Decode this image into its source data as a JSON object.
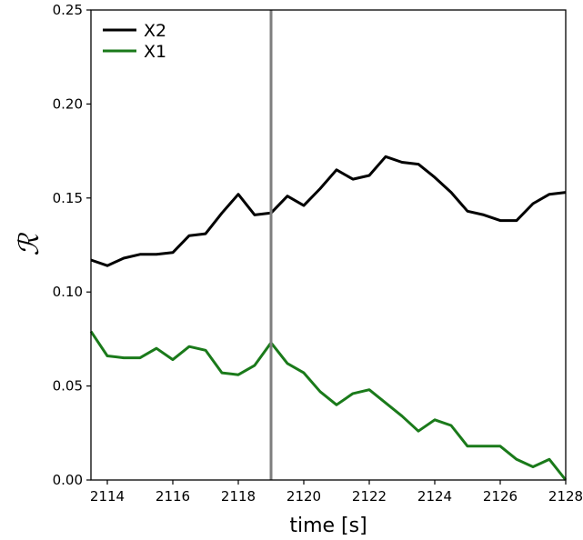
{
  "chart_data": {
    "type": "line",
    "title": "",
    "xlabel": "time [s]",
    "ylabel": "ℛ",
    "xlim": [
      2113.5,
      2128
    ],
    "ylim": [
      0,
      0.25
    ],
    "xticks": [
      2114,
      2116,
      2118,
      2120,
      2122,
      2124,
      2126,
      2128
    ],
    "yticks": [
      0.0,
      0.05,
      0.1,
      0.15,
      0.2,
      0.25
    ],
    "xtick_labels": [
      "2114",
      "2116",
      "2118",
      "2120",
      "2122",
      "2124",
      "2126",
      "2128"
    ],
    "ytick_labels": [
      "0.00",
      "0.05",
      "0.10",
      "0.15",
      "0.20",
      "0.25"
    ],
    "grid": false,
    "legend_position": "top-left",
    "vline": {
      "x": 2119,
      "color": "#7f7f7f"
    },
    "series": [
      {
        "name": "X2",
        "color": "#000000",
        "x": [
          2113.5,
          2114,
          2114.5,
          2115,
          2115.5,
          2116,
          2116.5,
          2117,
          2117.5,
          2118,
          2118.5,
          2119,
          2119.5,
          2120,
          2120.5,
          2121,
          2121.5,
          2122,
          2122.5,
          2123,
          2123.5,
          2124,
          2124.5,
          2125,
          2125.5,
          2126,
          2126.5,
          2127,
          2127.5,
          2128
        ],
        "values": [
          0.117,
          0.114,
          0.118,
          0.12,
          0.12,
          0.121,
          0.13,
          0.131,
          0.142,
          0.152,
          0.141,
          0.142,
          0.151,
          0.146,
          0.155,
          0.165,
          0.16,
          0.162,
          0.172,
          0.169,
          0.168,
          0.161,
          0.153,
          0.143,
          0.141,
          0.138,
          0.138,
          0.147,
          0.152,
          0.153
        ]
      },
      {
        "name": "X1",
        "color": "#1a7a1a",
        "x": [
          2113.5,
          2114,
          2114.5,
          2115,
          2115.5,
          2116,
          2116.5,
          2117,
          2117.5,
          2118,
          2118.5,
          2119,
          2119.5,
          2120,
          2120.5,
          2121,
          2121.5,
          2122,
          2122.5,
          2123,
          2123.5,
          2124,
          2124.5,
          2125,
          2125.5,
          2126,
          2126.5,
          2127,
          2127.5,
          2128
        ],
        "values": [
          0.079,
          0.066,
          0.065,
          0.065,
          0.07,
          0.064,
          0.071,
          0.069,
          0.057,
          0.056,
          0.061,
          0.073,
          0.062,
          0.057,
          0.047,
          0.04,
          0.046,
          0.048,
          0.041,
          0.034,
          0.026,
          0.032,
          0.029,
          0.018,
          0.018,
          0.018,
          0.011,
          0.007,
          0.011,
          0.0
        ]
      }
    ]
  }
}
